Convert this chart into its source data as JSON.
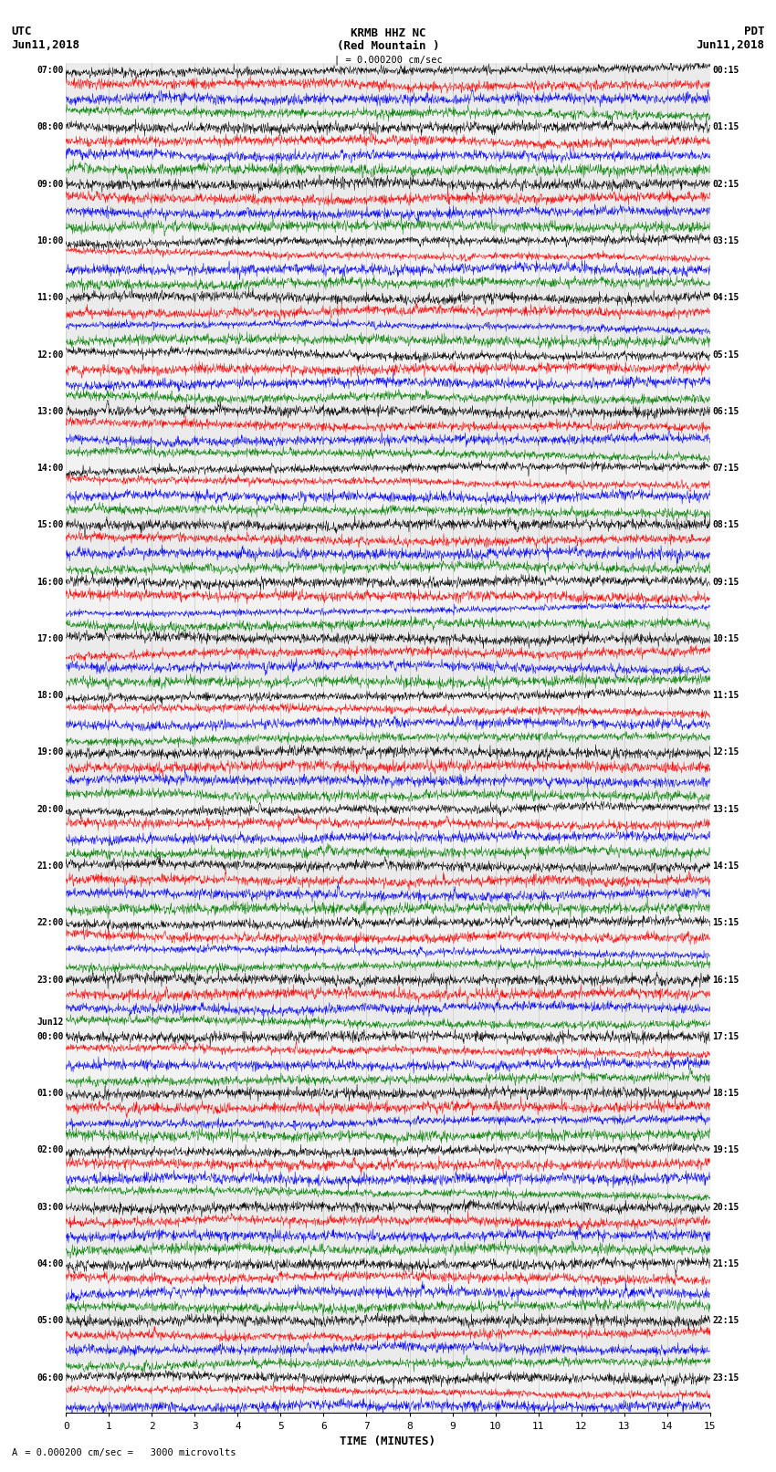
{
  "title_line1": "KRMB HHZ NC",
  "title_line2": "(Red Mountain )",
  "title_scale": "| = 0.000200 cm/sec",
  "left_header_line1": "UTC",
  "left_header_line2": "Jun11,2018",
  "right_header_line1": "PDT",
  "right_header_line2": "Jun11,2018",
  "xlabel": "TIME (MINUTES)",
  "footer_marker": "A",
  "footer_text": "= 0.000200 cm/sec =   3000 microvolts",
  "trace_colors": [
    "black",
    "red",
    "blue",
    "green"
  ],
  "figsize": [
    8.5,
    16.13
  ],
  "dpi": 100,
  "row_labels": [
    {
      "left": "07:00",
      "right": "00:15",
      "row": 0
    },
    {
      "left": "",
      "right": "",
      "row": 1
    },
    {
      "left": "",
      "right": "",
      "row": 2
    },
    {
      "left": "",
      "right": "",
      "row": 3
    },
    {
      "left": "08:00",
      "right": "01:15",
      "row": 4
    },
    {
      "left": "",
      "right": "",
      "row": 5
    },
    {
      "left": "",
      "right": "",
      "row": 6
    },
    {
      "left": "",
      "right": "",
      "row": 7
    },
    {
      "left": "09:00",
      "right": "02:15",
      "row": 8
    },
    {
      "left": "",
      "right": "",
      "row": 9
    },
    {
      "left": "",
      "right": "",
      "row": 10
    },
    {
      "left": "",
      "right": "",
      "row": 11
    },
    {
      "left": "10:00",
      "right": "03:15",
      "row": 12
    },
    {
      "left": "",
      "right": "",
      "row": 13
    },
    {
      "left": "",
      "right": "",
      "row": 14
    },
    {
      "left": "",
      "right": "",
      "row": 15
    },
    {
      "left": "11:00",
      "right": "04:15",
      "row": 16
    },
    {
      "left": "",
      "right": "",
      "row": 17
    },
    {
      "left": "",
      "right": "",
      "row": 18
    },
    {
      "left": "",
      "right": "",
      "row": 19
    },
    {
      "left": "12:00",
      "right": "05:15",
      "row": 20
    },
    {
      "left": "",
      "right": "",
      "row": 21
    },
    {
      "left": "",
      "right": "",
      "row": 22
    },
    {
      "left": "",
      "right": "",
      "row": 23
    },
    {
      "left": "13:00",
      "right": "06:15",
      "row": 24
    },
    {
      "left": "",
      "right": "",
      "row": 25
    },
    {
      "left": "",
      "right": "",
      "row": 26
    },
    {
      "left": "",
      "right": "",
      "row": 27
    },
    {
      "left": "14:00",
      "right": "07:15",
      "row": 28
    },
    {
      "left": "",
      "right": "",
      "row": 29
    },
    {
      "left": "",
      "right": "",
      "row": 30
    },
    {
      "left": "",
      "right": "",
      "row": 31
    },
    {
      "left": "15:00",
      "right": "08:15",
      "row": 32
    },
    {
      "left": "",
      "right": "",
      "row": 33
    },
    {
      "left": "",
      "right": "",
      "row": 34
    },
    {
      "left": "",
      "right": "",
      "row": 35
    },
    {
      "left": "16:00",
      "right": "09:15",
      "row": 36
    },
    {
      "left": "",
      "right": "",
      "row": 37
    },
    {
      "left": "",
      "right": "",
      "row": 38
    },
    {
      "left": "",
      "right": "",
      "row": 39
    },
    {
      "left": "17:00",
      "right": "10:15",
      "row": 40
    },
    {
      "left": "",
      "right": "",
      "row": 41
    },
    {
      "left": "",
      "right": "",
      "row": 42
    },
    {
      "left": "",
      "right": "",
      "row": 43
    },
    {
      "left": "18:00",
      "right": "11:15",
      "row": 44
    },
    {
      "left": "",
      "right": "",
      "row": 45
    },
    {
      "left": "",
      "right": "",
      "row": 46
    },
    {
      "left": "",
      "right": "",
      "row": 47
    },
    {
      "left": "19:00",
      "right": "12:15",
      "row": 48
    },
    {
      "left": "",
      "right": "",
      "row": 49
    },
    {
      "left": "",
      "right": "",
      "row": 50
    },
    {
      "left": "",
      "right": "",
      "row": 51
    },
    {
      "left": "20:00",
      "right": "13:15",
      "row": 52
    },
    {
      "left": "",
      "right": "",
      "row": 53
    },
    {
      "left": "",
      "right": "",
      "row": 54
    },
    {
      "left": "",
      "right": "",
      "row": 55
    },
    {
      "left": "21:00",
      "right": "14:15",
      "row": 56
    },
    {
      "left": "",
      "right": "",
      "row": 57
    },
    {
      "left": "",
      "right": "",
      "row": 58
    },
    {
      "left": "",
      "right": "",
      "row": 59
    },
    {
      "left": "22:00",
      "right": "15:15",
      "row": 60
    },
    {
      "left": "",
      "right": "",
      "row": 61
    },
    {
      "left": "",
      "right": "",
      "row": 62
    },
    {
      "left": "",
      "right": "",
      "row": 63
    },
    {
      "left": "23:00",
      "right": "16:15",
      "row": 64
    },
    {
      "left": "",
      "right": "",
      "row": 65
    },
    {
      "left": "",
      "right": "",
      "row": 66
    },
    {
      "left": "Jun12",
      "right": "",
      "row": 67
    },
    {
      "left": "00:00",
      "right": "17:15",
      "row": 68
    },
    {
      "left": "",
      "right": "",
      "row": 69
    },
    {
      "left": "",
      "right": "",
      "row": 70
    },
    {
      "left": "",
      "right": "",
      "row": 71
    },
    {
      "left": "01:00",
      "right": "18:15",
      "row": 72
    },
    {
      "left": "",
      "right": "",
      "row": 73
    },
    {
      "left": "",
      "right": "",
      "row": 74
    },
    {
      "left": "",
      "right": "",
      "row": 75
    },
    {
      "left": "02:00",
      "right": "19:15",
      "row": 76
    },
    {
      "left": "",
      "right": "",
      "row": 77
    },
    {
      "left": "",
      "right": "",
      "row": 78
    },
    {
      "left": "",
      "right": "",
      "row": 79
    },
    {
      "left": "03:00",
      "right": "20:15",
      "row": 80
    },
    {
      "left": "",
      "right": "",
      "row": 81
    },
    {
      "left": "",
      "right": "",
      "row": 82
    },
    {
      "left": "",
      "right": "",
      "row": 83
    },
    {
      "left": "04:00",
      "right": "21:15",
      "row": 84
    },
    {
      "left": "",
      "right": "",
      "row": 85
    },
    {
      "left": "",
      "right": "",
      "row": 86
    },
    {
      "left": "",
      "right": "",
      "row": 87
    },
    {
      "left": "05:00",
      "right": "22:15",
      "row": 88
    },
    {
      "left": "",
      "right": "",
      "row": 89
    },
    {
      "left": "",
      "right": "",
      "row": 90
    },
    {
      "left": "",
      "right": "",
      "row": 91
    },
    {
      "left": "06:00",
      "right": "23:15",
      "row": 92
    },
    {
      "left": "",
      "right": "",
      "row": 93
    },
    {
      "left": "",
      "right": "",
      "row": 94
    }
  ],
  "background_color": "#ffffff",
  "plot_bg_color": "#f0f0f0",
  "grid_color": "#aaaaaa",
  "tick_label_fontsize": 8,
  "header_fontsize": 9,
  "title_fontsize": 9,
  "label_fontsize": 7,
  "minutes": 15,
  "samples_per_trace": 1800
}
